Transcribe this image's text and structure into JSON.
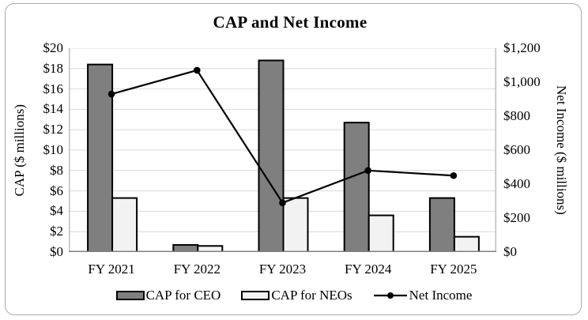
{
  "chart_data": {
    "type": "combo-bar-line",
    "title": "CAP and Net Income",
    "categories": [
      "FY 2021",
      "FY 2022",
      "FY 2023",
      "FY 2024",
      "FY 2025"
    ],
    "bar_series": [
      {
        "name": "CAP for CEO",
        "axis": "left",
        "fill": "#7F7F7F",
        "values": [
          18.4,
          0.7,
          18.8,
          12.7,
          5.3
        ]
      },
      {
        "name": "CAP for NEOs",
        "axis": "left",
        "fill": "#F2F2F2",
        "values": [
          5.3,
          0.6,
          5.3,
          3.6,
          1.5
        ]
      }
    ],
    "line_series": [
      {
        "name": "Net Income",
        "axis": "right",
        "color": "#000000",
        "values": [
          930,
          1070,
          290,
          480,
          450
        ]
      }
    ],
    "left_axis": {
      "label": "CAP ($ millions)",
      "min": 0,
      "max": 20,
      "step": 2,
      "tick_labels": [
        "$0",
        "$2",
        "$4",
        "$6",
        "$8",
        "$10",
        "$12",
        "$14",
        "$16",
        "$18",
        "$20"
      ]
    },
    "right_axis": {
      "label": "Net Income ($ millions)",
      "min": 0,
      "max": 1200,
      "step": 200,
      "tick_labels": [
        "$0",
        "$200",
        "$400",
        "$600",
        "$800",
        "$1,000",
        "$1,200"
      ]
    },
    "grid": true,
    "legend_position": "bottom",
    "colors": {
      "grid": "#D9D9D9",
      "axis_line": "#BFBFBF",
      "baseline": "#808080",
      "bar_border": "#000000",
      "card_border": "#ABABAB",
      "background": "#FFFFFF"
    }
  }
}
